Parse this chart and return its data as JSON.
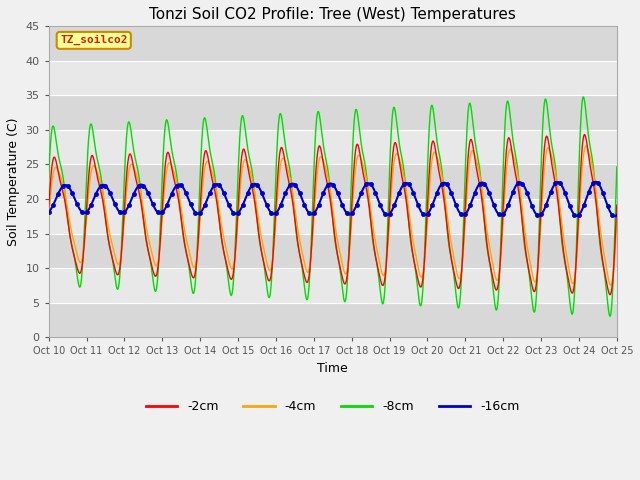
{
  "title": "Tonzi Soil CO2 Profile: Tree (West) Temperatures",
  "xlabel": "Time",
  "ylabel": "Soil Temperature (C)",
  "ylim": [
    0,
    45
  ],
  "xlim": [
    0,
    15
  ],
  "fig_bg": "#f0f0f0",
  "plot_bg": "#e8e8e8",
  "series": {
    "2cm": {
      "color": "#ff0000",
      "label": "-2cm"
    },
    "4cm": {
      "color": "#ffa500",
      "label": "-4cm"
    },
    "8cm": {
      "color": "#00dd00",
      "label": "-8cm"
    },
    "16cm": {
      "color": "#0000cc",
      "label": "-16cm"
    }
  },
  "x_tick_labels": [
    "Oct 10",
    "Oct 11",
    "Oct 12",
    "Oct 13",
    "Oct 14",
    "Oct 15",
    "Oct 16",
    "Oct 17",
    "Oct 18",
    "Oct 19",
    "Oct 20",
    "Oct 21",
    "Oct 22",
    "Oct 23",
    "Oct 24",
    "Oct 25"
  ],
  "y_ticks": [
    0,
    5,
    10,
    15,
    20,
    25,
    30,
    35,
    40,
    45
  ],
  "watermark_text": "TZ_soilco2",
  "watermark_color": "#cc2200",
  "watermark_bg": "#ffff99",
  "watermark_border": "#cc8800"
}
